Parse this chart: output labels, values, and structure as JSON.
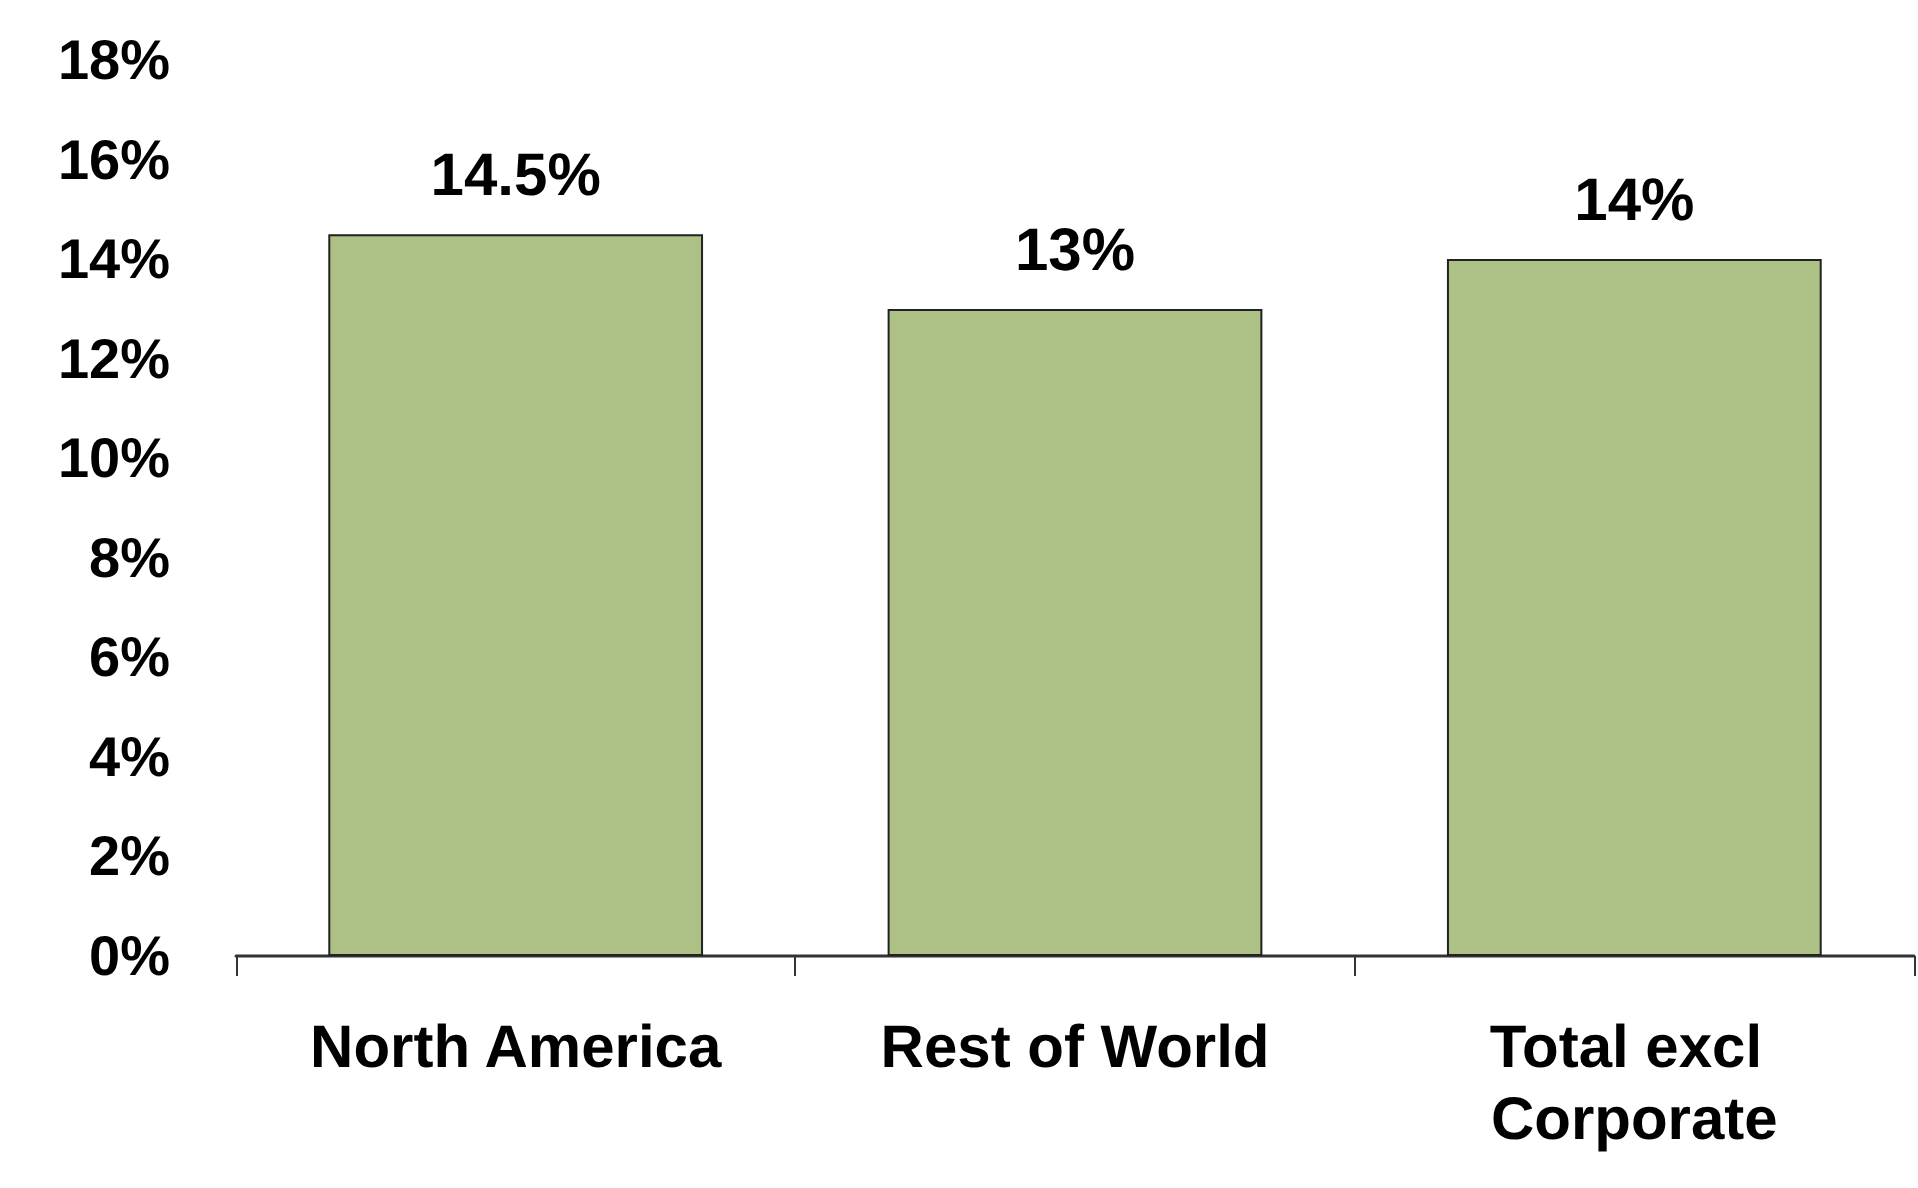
{
  "chart_data": {
    "type": "bar",
    "categories": [
      "North America",
      "Rest of World",
      "Total excl Corporate"
    ],
    "values": [
      14.5,
      13,
      14
    ],
    "value_labels": [
      "14.5%",
      "13%",
      "14%"
    ],
    "color": "#adc186",
    "ylim": [
      0,
      18
    ],
    "yticks": [
      {
        "value": 0,
        "label": "0%"
      },
      {
        "value": 2,
        "label": "2%"
      },
      {
        "value": 4,
        "label": "4%"
      },
      {
        "value": 6,
        "label": "6%"
      },
      {
        "value": 8,
        "label": "8%"
      },
      {
        "value": 10,
        "label": "10%"
      },
      {
        "value": 12,
        "label": "12%"
      },
      {
        "value": 14,
        "label": "14%"
      },
      {
        "value": 16,
        "label": "16%"
      },
      {
        "value": 18,
        "label": "18%"
      }
    ],
    "grid": false
  }
}
